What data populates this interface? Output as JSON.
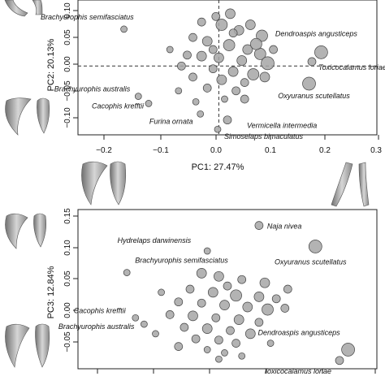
{
  "chart_data": [
    {
      "type": "scatter",
      "xlabel": "PC1: 27.47%",
      "ylabel": "PC2: 20.13%",
      "xticks": [
        "−0.2",
        "−0.1",
        "0.0",
        "0.1",
        "0.2",
        "0.3"
      ],
      "yticks": [
        "−0.10",
        "−0.05",
        "0.00",
        "0.05",
        "0.10"
      ],
      "xlim": [
        -0.245,
        0.275
      ],
      "ylim": [
        -0.125,
        0.12
      ],
      "reference_lines": "dashed lines at x = 0 and y = 0",
      "grid": false,
      "colors": {
        "fill": "#a6a6a6",
        "stroke": "#444444"
      },
      "points": [
        {
          "x": 0.178,
          "y": 0.025,
          "size": 8,
          "label": "Dendroaspis angusticeps"
        },
        {
          "x": 0.162,
          "y": 0.008,
          "size": 5,
          "label": "Toxicocalamus loriae"
        },
        {
          "x": 0.157,
          "y": -0.032,
          "size": 8,
          "label": "Oxyuranus scutellatus"
        },
        {
          "x": -0.165,
          "y": 0.067,
          "size": 4,
          "label": "Brachyurophis semifasciatus"
        },
        {
          "x": -0.14,
          "y": -0.055,
          "size": 4,
          "label": "Brachyurophis australis"
        },
        {
          "x": -0.122,
          "y": -0.068,
          "size": 4,
          "label": "Cacophis krefftii"
        },
        {
          "x": -0.032,
          "y": -0.087,
          "size": 4,
          "label": "Furina ornata"
        },
        {
          "x": 0.015,
          "y": -0.098,
          "size": 5,
          "label": "Vermicella intermedia"
        },
        {
          "x": -0.002,
          "y": -0.115,
          "size": 4,
          "label": "Simoselaps bimaculatus"
        },
        {
          "x": 0.005,
          "y": 0.075,
          "size": 7
        },
        {
          "x": 0.035,
          "y": 0.065,
          "size": 6
        },
        {
          "x": 0.075,
          "y": 0.055,
          "size": 7
        },
        {
          "x": -0.045,
          "y": 0.052,
          "size": 5
        },
        {
          "x": -0.02,
          "y": 0.045,
          "size": 6
        },
        {
          "x": 0.018,
          "y": 0.038,
          "size": 7
        },
        {
          "x": 0.05,
          "y": 0.03,
          "size": 6
        },
        {
          "x": 0.072,
          "y": 0.022,
          "size": 7
        },
        {
          "x": -0.055,
          "y": 0.02,
          "size": 5
        },
        {
          "x": -0.03,
          "y": 0.018,
          "size": 6
        },
        {
          "x": 0.0,
          "y": 0.015,
          "size": 6
        },
        {
          "x": 0.04,
          "y": 0.01,
          "size": 6
        },
        {
          "x": -0.065,
          "y": 0.0,
          "size": 5
        },
        {
          "x": -0.01,
          "y": -0.005,
          "size": 5
        },
        {
          "x": 0.025,
          "y": -0.01,
          "size": 6
        },
        {
          "x": 0.06,
          "y": -0.015,
          "size": 7
        },
        {
          "x": -0.045,
          "y": -0.02,
          "size": 5
        },
        {
          "x": 0.005,
          "y": -0.025,
          "size": 6
        },
        {
          "x": 0.045,
          "y": -0.03,
          "size": 5
        },
        {
          "x": -0.02,
          "y": -0.04,
          "size": 5
        },
        {
          "x": 0.03,
          "y": -0.045,
          "size": 5
        },
        {
          "x": -0.07,
          "y": -0.045,
          "size": 4
        },
        {
          "x": 0.01,
          "y": -0.06,
          "size": 4
        },
        {
          "x": -0.04,
          "y": -0.065,
          "size": 4
        },
        {
          "x": 0.08,
          "y": -0.02,
          "size": 6
        },
        {
          "x": 0.065,
          "y": 0.04,
          "size": 7
        },
        {
          "x": 0.085,
          "y": 0.005,
          "size": 8
        },
        {
          "x": -0.005,
          "y": 0.09,
          "size": 5
        },
        {
          "x": 0.02,
          "y": 0.095,
          "size": 6
        },
        {
          "x": -0.03,
          "y": 0.08,
          "size": 5
        },
        {
          "x": 0.055,
          "y": 0.075,
          "size": 6
        },
        {
          "x": 0.045,
          "y": -0.06,
          "size": 5
        },
        {
          "x": -0.085,
          "y": 0.03,
          "size": 4
        },
        {
          "x": 0.095,
          "y": 0.03,
          "size": 5
        },
        {
          "x": 0.025,
          "y": 0.06,
          "size": 5
        },
        {
          "x": -0.01,
          "y": 0.03,
          "size": 5
        }
      ]
    },
    {
      "type": "scatter",
      "ylabel": "PC3: 12.84%",
      "yticks": [
        "−0.05",
        "0.00",
        "0.05",
        "0.10",
        "0.15"
      ],
      "xlim": [
        -0.245,
        0.275
      ],
      "ylim": [
        -0.085,
        0.165
      ],
      "grid": false,
      "colors": {
        "fill": "#a6a6a6",
        "stroke": "#444444"
      },
      "points": [
        {
          "x": 0.07,
          "y": 0.14,
          "size": 5,
          "label": "Naja nivea"
        },
        {
          "x": 0.168,
          "y": 0.107,
          "size": 8,
          "label": "Oxyuranus scutellatus"
        },
        {
          "x": -0.02,
          "y": 0.1,
          "size": 4,
          "label": "Hydrelaps darwinensis"
        },
        {
          "x": -0.16,
          "y": 0.066,
          "size": 4,
          "label": "Brachyurophis semifasciatus"
        },
        {
          "x": -0.145,
          "y": -0.005,
          "size": 4,
          "label": "Cacophis krefftii"
        },
        {
          "x": -0.13,
          "y": -0.015,
          "size": 4,
          "label": "Brachyurophis australis"
        },
        {
          "x": 0.225,
          "y": -0.055,
          "size": 8,
          "label": "Dendroaspis angusticeps"
        },
        {
          "x": 0.21,
          "y": -0.072,
          "size": 5,
          "label": "Toxicocalamus loriae"
        },
        {
          "x": -0.03,
          "y": 0.065,
          "size": 6
        },
        {
          "x": 0.0,
          "y": 0.06,
          "size": 6
        },
        {
          "x": 0.04,
          "y": 0.055,
          "size": 5
        },
        {
          "x": 0.08,
          "y": 0.05,
          "size": 6
        },
        {
          "x": -0.05,
          "y": 0.04,
          "size": 5
        },
        {
          "x": -0.01,
          "y": 0.035,
          "size": 6
        },
        {
          "x": 0.03,
          "y": 0.03,
          "size": 7
        },
        {
          "x": 0.07,
          "y": 0.028,
          "size": 6
        },
        {
          "x": 0.1,
          "y": 0.025,
          "size": 5
        },
        {
          "x": -0.07,
          "y": 0.02,
          "size": 5
        },
        {
          "x": -0.03,
          "y": 0.018,
          "size": 5
        },
        {
          "x": 0.01,
          "y": 0.015,
          "size": 6
        },
        {
          "x": 0.05,
          "y": 0.012,
          "size": 6
        },
        {
          "x": 0.085,
          "y": 0.008,
          "size": 7
        },
        {
          "x": 0.115,
          "y": 0.01,
          "size": 5
        },
        {
          "x": -0.085,
          "y": 0.0,
          "size": 5
        },
        {
          "x": -0.045,
          "y": -0.002,
          "size": 6
        },
        {
          "x": -0.005,
          "y": -0.005,
          "size": 5
        },
        {
          "x": 0.035,
          "y": -0.008,
          "size": 6
        },
        {
          "x": 0.07,
          "y": -0.012,
          "size": 5
        },
        {
          "x": -0.06,
          "y": -0.02,
          "size": 5
        },
        {
          "x": -0.02,
          "y": -0.022,
          "size": 6
        },
        {
          "x": 0.02,
          "y": -0.025,
          "size": 5
        },
        {
          "x": 0.055,
          "y": -0.03,
          "size": 6
        },
        {
          "x": -0.04,
          "y": -0.038,
          "size": 5
        },
        {
          "x": 0.0,
          "y": -0.04,
          "size": 5
        },
        {
          "x": 0.03,
          "y": -0.045,
          "size": 5
        },
        {
          "x": -0.07,
          "y": -0.05,
          "size": 5
        },
        {
          "x": -0.02,
          "y": -0.055,
          "size": 4
        },
        {
          "x": 0.01,
          "y": -0.06,
          "size": 4
        },
        {
          "x": 0.04,
          "y": -0.065,
          "size": 4
        },
        {
          "x": 0.0,
          "y": -0.07,
          "size": 4
        },
        {
          "x": -0.1,
          "y": 0.035,
          "size": 4
        },
        {
          "x": 0.12,
          "y": 0.04,
          "size": 5
        },
        {
          "x": -0.11,
          "y": -0.03,
          "size": 4
        },
        {
          "x": 0.09,
          "y": -0.045,
          "size": 4
        },
        {
          "x": 0.015,
          "y": 0.045,
          "size": 5
        }
      ]
    }
  ]
}
